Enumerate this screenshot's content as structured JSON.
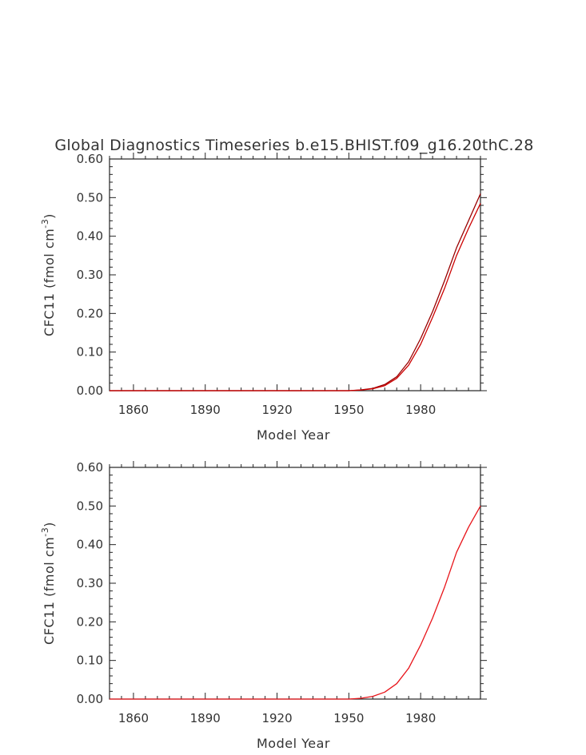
{
  "figure": {
    "title": "Global Diagnostics Timeseries b.e15.BHIST.f09_g16.20thC.28"
  },
  "chart_data": [
    {
      "type": "line",
      "xlabel": "Model Year",
      "ylabel_main": "CFC11  (fmol cm",
      "ylabel_sup": "-3",
      "ylabel_close": ")",
      "xlim": [
        1850,
        2005
      ],
      "ylim": [
        0,
        0.6
      ],
      "xticks": [
        1860,
        1890,
        1920,
        1950,
        1980
      ],
      "xtick_labels": [
        "1860",
        "1890",
        "1920",
        "1950",
        "1980"
      ],
      "yticks": [
        0,
        0.1,
        0.2,
        0.3,
        0.4,
        0.5,
        0.6
      ],
      "ytick_labels": [
        "0.00",
        "0.10",
        "0.20",
        "0.30",
        "0.40",
        "0.50",
        "0.60"
      ],
      "grid": false,
      "series": [
        {
          "color": "#990000",
          "x": [
            1850,
            1900,
            1950,
            1955,
            1960,
            1965,
            1970,
            1975,
            1980,
            1985,
            1990,
            1995,
            2000,
            2005
          ],
          "y": [
            0,
            0,
            0,
            0.002,
            0.006,
            0.016,
            0.036,
            0.075,
            0.135,
            0.205,
            0.285,
            0.37,
            0.44,
            0.51
          ]
        },
        {
          "color": "#cc0000",
          "x": [
            1850,
            1900,
            1950,
            1955,
            1960,
            1965,
            1970,
            1975,
            1980,
            1985,
            1990,
            1995,
            2000,
            2005
          ],
          "y": [
            0,
            0,
            0,
            0.0015,
            0.005,
            0.013,
            0.032,
            0.066,
            0.12,
            0.19,
            0.265,
            0.35,
            0.42,
            0.485
          ]
        }
      ]
    },
    {
      "type": "line",
      "xlabel": "Model Year",
      "ylabel_main": "CFC11  (fmol cm",
      "ylabel_sup": "-3",
      "ylabel_close": ")",
      "xlim": [
        1850,
        2005
      ],
      "ylim": [
        0,
        0.6
      ],
      "xticks": [
        1860,
        1890,
        1920,
        1950,
        1980
      ],
      "xtick_labels": [
        "1860",
        "1890",
        "1920",
        "1950",
        "1980"
      ],
      "yticks": [
        0,
        0.1,
        0.2,
        0.3,
        0.4,
        0.5,
        0.6
      ],
      "ytick_labels": [
        "0.00",
        "0.10",
        "0.20",
        "0.30",
        "0.40",
        "0.50",
        "0.60"
      ],
      "grid": false,
      "series": [
        {
          "color": "#e8141a",
          "x": [
            1850,
            1900,
            1950,
            1955,
            1960,
            1965,
            1970,
            1975,
            1980,
            1985,
            1990,
            1995,
            2000,
            2005
          ],
          "y": [
            0,
            0,
            0,
            0.002,
            0.007,
            0.018,
            0.04,
            0.08,
            0.14,
            0.21,
            0.29,
            0.38,
            0.445,
            0.5
          ]
        }
      ]
    }
  ]
}
